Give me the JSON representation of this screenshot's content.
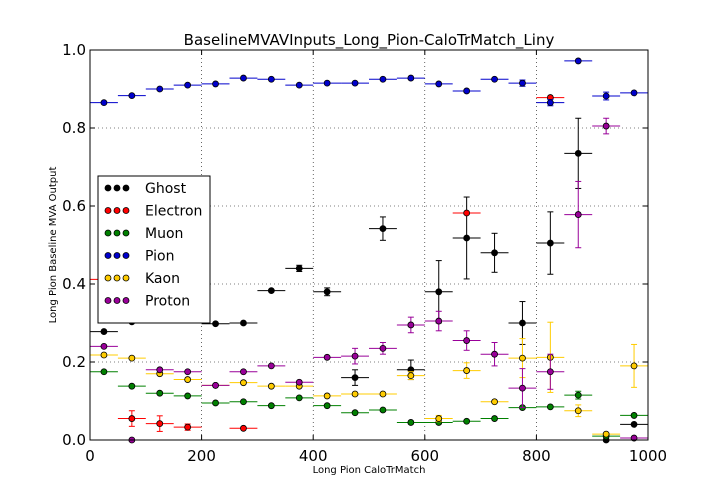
{
  "chart_data": {
    "type": "scatter",
    "title": "BaselineMVAVInputs_Long_Pion-CaloTrMatch_Liny",
    "xlabel": "Long Pion CaloTrMatch",
    "ylabel": "Long Pion Baseline MVA Output",
    "xlim": [
      0,
      1000
    ],
    "ylim": [
      0,
      1.0
    ],
    "xticks": [
      "0",
      "200",
      "400",
      "600",
      "800",
      "1000"
    ],
    "yticks": [
      "0.0",
      "0.2",
      "0.4",
      "0.6",
      "0.8",
      "1.0"
    ],
    "grid": true,
    "legend_position": "center-left",
    "series": [
      {
        "name": "Ghost",
        "color": "#000000",
        "points": [
          {
            "x": 25,
            "y": 0.278,
            "yerr": 0.0
          },
          {
            "x": 75,
            "y": 0.303,
            "yerr": 0.0
          },
          {
            "x": 175,
            "y": 0.32,
            "yerr": 0.0
          },
          {
            "x": 225,
            "y": 0.298,
            "yerr": 0.0
          },
          {
            "x": 275,
            "y": 0.3,
            "yerr": 0.0
          },
          {
            "x": 325,
            "y": 0.383,
            "yerr": 0.0
          },
          {
            "x": 375,
            "y": 0.44,
            "yerr": 0.008
          },
          {
            "x": 425,
            "y": 0.38,
            "yerr": 0.01
          },
          {
            "x": 475,
            "y": 0.16,
            "yerr": 0.02
          },
          {
            "x": 525,
            "y": 0.542,
            "yerr": 0.03
          },
          {
            "x": 575,
            "y": 0.18,
            "yerr": 0.025
          },
          {
            "x": 625,
            "y": 0.38,
            "yerr": 0.08
          },
          {
            "x": 675,
            "y": 0.518,
            "yerr": 0.105
          },
          {
            "x": 725,
            "y": 0.48,
            "yerr": 0.05
          },
          {
            "x": 775,
            "y": 0.3,
            "yerr": 0.055
          },
          {
            "x": 825,
            "y": 0.505,
            "yerr": 0.08
          },
          {
            "x": 875,
            "y": 0.735,
            "yerr": 0.09
          },
          {
            "x": 925,
            "y": 0.0,
            "yerr": 0.0
          },
          {
            "x": 975,
            "y": 0.04,
            "yerr": 0.0
          }
        ]
      },
      {
        "name": "Electron",
        "color": "#ff0000",
        "points": [
          {
            "x": 25,
            "y": 0.412,
            "yerr": 0.0
          },
          {
            "x": 75,
            "y": 0.055,
            "yerr": 0.02
          },
          {
            "x": 125,
            "y": 0.042,
            "yerr": 0.02
          },
          {
            "x": 175,
            "y": 0.033,
            "yerr": 0.008
          },
          {
            "x": 275,
            "y": 0.03,
            "yerr": 0.0
          },
          {
            "x": 675,
            "y": 0.582,
            "yerr": 0.0
          },
          {
            "x": 825,
            "y": 0.878,
            "yerr": 0.0
          }
        ]
      },
      {
        "name": "Muon",
        "color": "#008000",
        "points": [
          {
            "x": 25,
            "y": 0.175,
            "yerr": 0.0
          },
          {
            "x": 75,
            "y": 0.138,
            "yerr": 0.0
          },
          {
            "x": 125,
            "y": 0.12,
            "yerr": 0.0
          },
          {
            "x": 175,
            "y": 0.113,
            "yerr": 0.0
          },
          {
            "x": 225,
            "y": 0.095,
            "yerr": 0.0
          },
          {
            "x": 275,
            "y": 0.098,
            "yerr": 0.0
          },
          {
            "x": 325,
            "y": 0.088,
            "yerr": 0.0
          },
          {
            "x": 375,
            "y": 0.108,
            "yerr": 0.0
          },
          {
            "x": 425,
            "y": 0.088,
            "yerr": 0.0
          },
          {
            "x": 475,
            "y": 0.07,
            "yerr": 0.0
          },
          {
            "x": 525,
            "y": 0.077,
            "yerr": 0.0
          },
          {
            "x": 575,
            "y": 0.045,
            "yerr": 0.0
          },
          {
            "x": 625,
            "y": 0.045,
            "yerr": 0.0
          },
          {
            "x": 675,
            "y": 0.048,
            "yerr": 0.0
          },
          {
            "x": 725,
            "y": 0.055,
            "yerr": 0.0
          },
          {
            "x": 775,
            "y": 0.083,
            "yerr": 0.0
          },
          {
            "x": 825,
            "y": 0.085,
            "yerr": 0.0
          },
          {
            "x": 875,
            "y": 0.115,
            "yerr": 0.01
          },
          {
            "x": 925,
            "y": 0.01,
            "yerr": 0.0
          },
          {
            "x": 975,
            "y": 0.063,
            "yerr": 0.0
          }
        ]
      },
      {
        "name": "Pion",
        "color": "#0000cc",
        "points": [
          {
            "x": 25,
            "y": 0.865,
            "yerr": 0.0
          },
          {
            "x": 75,
            "y": 0.883,
            "yerr": 0.0
          },
          {
            "x": 125,
            "y": 0.9,
            "yerr": 0.0
          },
          {
            "x": 175,
            "y": 0.91,
            "yerr": 0.0
          },
          {
            "x": 225,
            "y": 0.913,
            "yerr": 0.0
          },
          {
            "x": 275,
            "y": 0.928,
            "yerr": 0.0
          },
          {
            "x": 325,
            "y": 0.925,
            "yerr": 0.0
          },
          {
            "x": 375,
            "y": 0.91,
            "yerr": 0.0
          },
          {
            "x": 425,
            "y": 0.915,
            "yerr": 0.0
          },
          {
            "x": 475,
            "y": 0.915,
            "yerr": 0.0
          },
          {
            "x": 525,
            "y": 0.925,
            "yerr": 0.0
          },
          {
            "x": 575,
            "y": 0.928,
            "yerr": 0.0
          },
          {
            "x": 625,
            "y": 0.913,
            "yerr": 0.0
          },
          {
            "x": 675,
            "y": 0.895,
            "yerr": 0.0
          },
          {
            "x": 725,
            "y": 0.925,
            "yerr": 0.0
          },
          {
            "x": 775,
            "y": 0.915,
            "yerr": 0.008
          },
          {
            "x": 825,
            "y": 0.865,
            "yerr": 0.008
          },
          {
            "x": 875,
            "y": 0.972,
            "yerr": 0.0
          },
          {
            "x": 925,
            "y": 0.882,
            "yerr": 0.01
          },
          {
            "x": 975,
            "y": 0.89,
            "yerr": 0.0
          }
        ]
      },
      {
        "name": "Kaon",
        "color": "#ffcc00",
        "points": [
          {
            "x": 25,
            "y": 0.218,
            "yerr": 0.0
          },
          {
            "x": 75,
            "y": 0.21,
            "yerr": 0.0
          },
          {
            "x": 125,
            "y": 0.17,
            "yerr": 0.0
          },
          {
            "x": 175,
            "y": 0.155,
            "yerr": 0.0
          },
          {
            "x": 225,
            "y": 0.14,
            "yerr": 0.0
          },
          {
            "x": 275,
            "y": 0.147,
            "yerr": 0.0
          },
          {
            "x": 325,
            "y": 0.138,
            "yerr": 0.0
          },
          {
            "x": 375,
            "y": 0.138,
            "yerr": 0.0
          },
          {
            "x": 425,
            "y": 0.113,
            "yerr": 0.0
          },
          {
            "x": 475,
            "y": 0.118,
            "yerr": 0.0
          },
          {
            "x": 525,
            "y": 0.118,
            "yerr": 0.0
          },
          {
            "x": 575,
            "y": 0.165,
            "yerr": 0.01
          },
          {
            "x": 625,
            "y": 0.055,
            "yerr": 0.008
          },
          {
            "x": 675,
            "y": 0.178,
            "yerr": 0.02
          },
          {
            "x": 725,
            "y": 0.098,
            "yerr": 0.0
          },
          {
            "x": 775,
            "y": 0.21,
            "yerr": 0.05
          },
          {
            "x": 825,
            "y": 0.212,
            "yerr": 0.09
          },
          {
            "x": 875,
            "y": 0.075,
            "yerr": 0.015
          },
          {
            "x": 925,
            "y": 0.015,
            "yerr": 0.0
          },
          {
            "x": 975,
            "y": 0.19,
            "yerr": 0.055
          }
        ]
      },
      {
        "name": "Proton",
        "color": "#990099",
        "points": [
          {
            "x": 25,
            "y": 0.24,
            "yerr": 0.0
          },
          {
            "x": 75,
            "y": 0.0,
            "yerr": 0.0
          },
          {
            "x": 125,
            "y": 0.18,
            "yerr": 0.0
          },
          {
            "x": 175,
            "y": 0.175,
            "yerr": 0.0
          },
          {
            "x": 225,
            "y": 0.14,
            "yerr": 0.0
          },
          {
            "x": 275,
            "y": 0.175,
            "yerr": 0.0
          },
          {
            "x": 325,
            "y": 0.19,
            "yerr": 0.0
          },
          {
            "x": 375,
            "y": 0.148,
            "yerr": 0.0
          },
          {
            "x": 425,
            "y": 0.212,
            "yerr": 0.0
          },
          {
            "x": 475,
            "y": 0.215,
            "yerr": 0.02
          },
          {
            "x": 525,
            "y": 0.235,
            "yerr": 0.015
          },
          {
            "x": 575,
            "y": 0.295,
            "yerr": 0.02
          },
          {
            "x": 625,
            "y": 0.305,
            "yerr": 0.025
          },
          {
            "x": 675,
            "y": 0.255,
            "yerr": 0.025
          },
          {
            "x": 725,
            "y": 0.22,
            "yerr": 0.03
          },
          {
            "x": 775,
            "y": 0.133,
            "yerr": 0.05
          },
          {
            "x": 825,
            "y": 0.175,
            "yerr": 0.045
          },
          {
            "x": 875,
            "y": 0.578,
            "yerr": 0.085
          },
          {
            "x": 925,
            "y": 0.805,
            "yerr": 0.02
          },
          {
            "x": 975,
            "y": 0.005,
            "yerr": 0.0
          }
        ]
      }
    ]
  }
}
